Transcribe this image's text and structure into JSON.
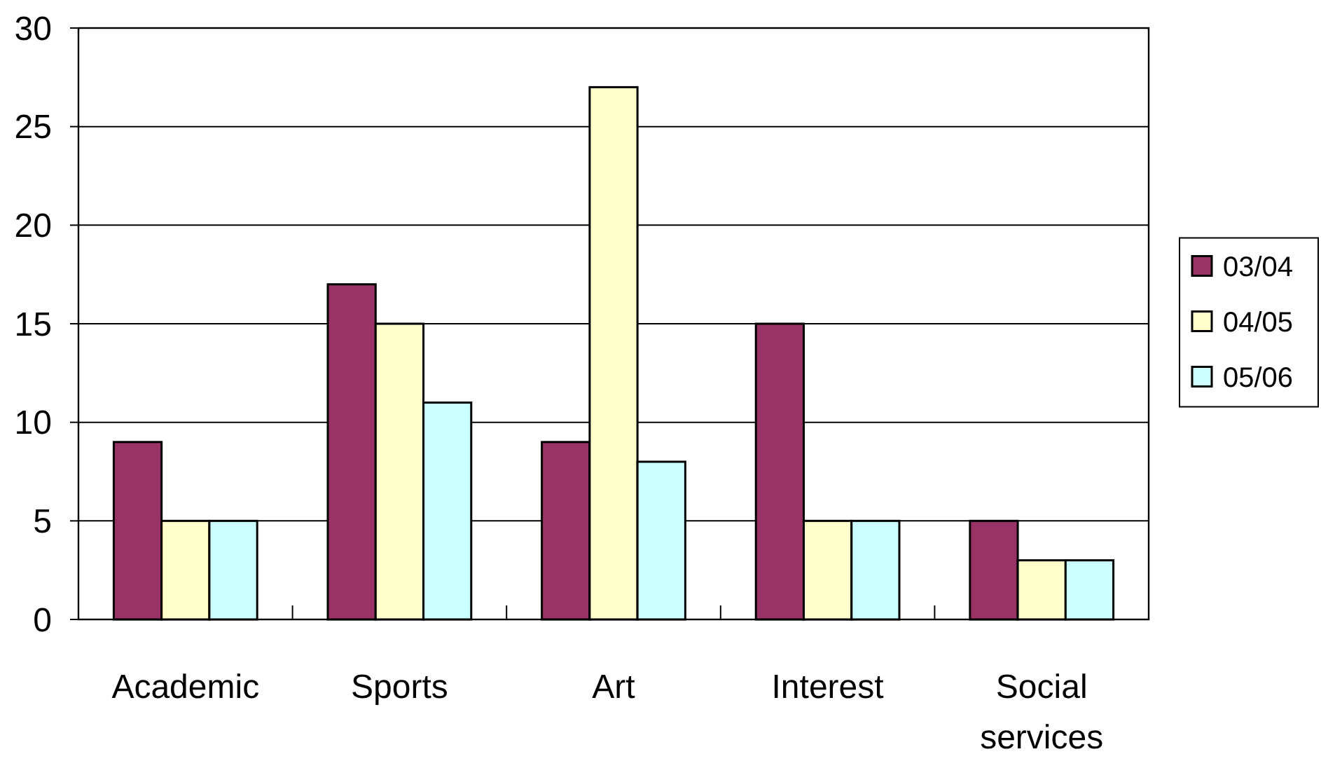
{
  "chart_data": {
    "type": "bar",
    "categories": [
      "Academic",
      "Sports",
      "Art",
      "Interest",
      "Social services"
    ],
    "series": [
      {
        "name": "03/04",
        "color": "#993366",
        "values": [
          9,
          17,
          9,
          15,
          5
        ]
      },
      {
        "name": "04/05",
        "color": "#ffffcc",
        "values": [
          5,
          15,
          27,
          5,
          3
        ]
      },
      {
        "name": "05/06",
        "color": "#ccffff",
        "values": [
          5,
          11,
          8,
          5,
          3
        ]
      }
    ],
    "ylim": [
      0,
      30
    ],
    "yticks": [
      0,
      5,
      10,
      15,
      20,
      25,
      30
    ],
    "grid": "y",
    "legend": "right"
  }
}
